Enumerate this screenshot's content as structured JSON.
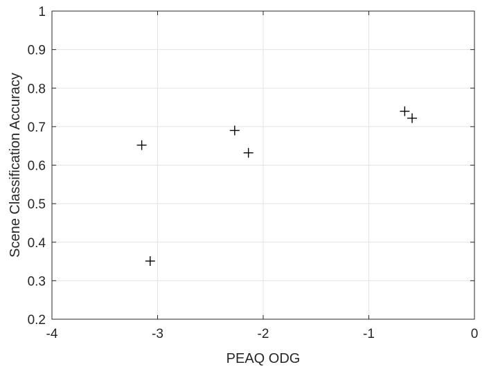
{
  "chart_data": {
    "type": "scatter",
    "xlabel": "PEAQ ODG",
    "ylabel": "Scene Classification Accuracy",
    "xlim": [
      -4,
      0
    ],
    "ylim": [
      0.2,
      1
    ],
    "xticks": [
      -4,
      -3,
      -2,
      -1,
      0
    ],
    "xtick_labels": [
      "-4",
      "-3",
      "-2",
      "-1",
      "0"
    ],
    "yticks": [
      0.2,
      0.3,
      0.4,
      0.5,
      0.6,
      0.7,
      0.8,
      0.9,
      1
    ],
    "ytick_labels": [
      "0.2",
      "0.3",
      "0.4",
      "0.5",
      "0.6",
      "0.7",
      "0.8",
      "0.9",
      "1"
    ],
    "grid": true,
    "marker": "plus",
    "marker_color": "#000000",
    "grid_color": "#e3e3e3",
    "axis_color": "#262626",
    "points": [
      {
        "x": -3.15,
        "y": 0.652
      },
      {
        "x": -3.07,
        "y": 0.351
      },
      {
        "x": -2.27,
        "y": 0.69
      },
      {
        "x": -2.14,
        "y": 0.632
      },
      {
        "x": -0.66,
        "y": 0.74
      },
      {
        "x": -0.59,
        "y": 0.722
      }
    ]
  }
}
